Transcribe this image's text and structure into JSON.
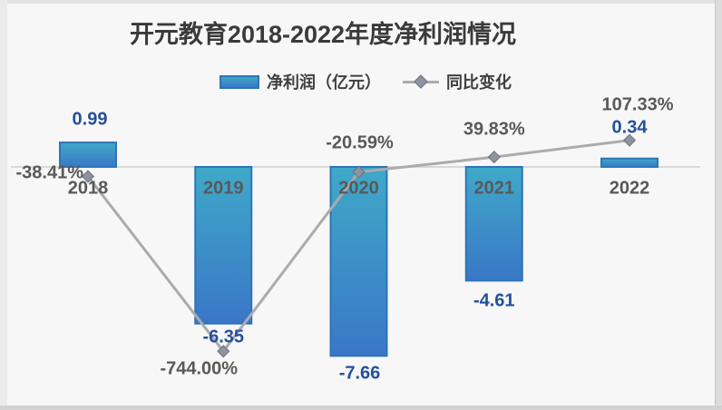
{
  "title": "开元教育2018-2022年度净利润情况",
  "legend": {
    "bar_label": "净利润（亿元）",
    "line_label": "同比变化"
  },
  "chart_data": {
    "type": "combo",
    "title": "开元教育2018-2022年度净利润情况",
    "categories": [
      "2018",
      "2019",
      "2020",
      "2021",
      "2022"
    ],
    "series": [
      {
        "name": "净利润（亿元）",
        "type": "bar",
        "axis": "primary",
        "unit": "亿元",
        "values": [
          0.99,
          -6.35,
          -7.66,
          -4.61,
          0.34
        ],
        "labels": [
          "0.99",
          "-6.35",
          "-7.66",
          "-4.61",
          "0.34"
        ],
        "label_offsets": [
          [
            2,
            -25
          ],
          [
            0,
            15
          ],
          [
            1,
            20
          ],
          [
            0,
            23
          ],
          [
            0,
            -34
          ]
        ]
      },
      {
        "name": "同比变化",
        "type": "line",
        "axis": "secondary",
        "unit": "%",
        "values": [
          -38.41,
          -744.0,
          -20.59,
          39.83,
          107.33
        ],
        "labels": [
          "-38.41%",
          "-744.00%",
          "-20.59%",
          "39.83%",
          "107.33%"
        ],
        "label_placements": [
          "left",
          "center",
          "center",
          "center",
          "center"
        ],
        "label_offsets": [
          [
            -5,
            -3
          ],
          [
            -27,
            20
          ],
          [
            1,
            -32
          ],
          [
            0,
            -30
          ],
          [
            9,
            -39
          ]
        ]
      }
    ],
    "legend_position": "top",
    "grid": false,
    "axes_visible": false,
    "baseline_shared_at_zero": true,
    "ylim_primary_est": [
      -8.5,
      1.5
    ],
    "ylim_secondary_pct_est": [
      -800,
      150
    ],
    "colors": {
      "bar_top": "#3fa9c9",
      "bar_bottom": "#3a77c7",
      "bar_border": "#2e75b6",
      "line": "#ababab",
      "marker_fill": "#8d93a0",
      "marker_border": "#71717c",
      "axis_line": "#d9d9d9",
      "bar_value_label": "#24509d",
      "pct_value_label": "#595959",
      "title_text": "#3a3a3a"
    }
  }
}
